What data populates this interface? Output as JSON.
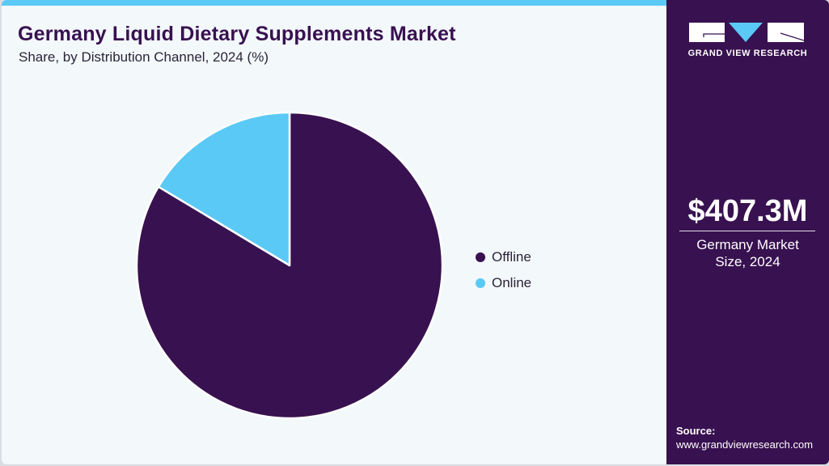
{
  "header": {
    "title": "Germany Liquid Dietary Supplements Market",
    "subtitle": "Share, by Distribution Channel, 2024 (%)"
  },
  "colors": {
    "offline": "#381150",
    "online": "#5bc9f5",
    "accent_bar": "#5bc9f5",
    "panel_bg": "#381150",
    "chart_bg": "#f3f8fb"
  },
  "legend": {
    "items": [
      {
        "label": "Offline",
        "color": "#381150"
      },
      {
        "label": "Online",
        "color": "#5bc9f5"
      }
    ]
  },
  "side_panel": {
    "logo_text": "GRAND VIEW RESEARCH",
    "market_value": "$407.3M",
    "market_label": "Germany Market Size, 2024",
    "source_label": "Source:",
    "source_url": "www.grandviewresearch.com"
  },
  "chart_data": {
    "type": "pie",
    "title": "Germany Liquid Dietary Supplements Market",
    "subtitle": "Share, by Distribution Channel, 2024 (%)",
    "categories": [
      "Offline",
      "Online"
    ],
    "values": [
      83.6,
      16.4
    ],
    "legend_position": "right",
    "start_angle": "12 o'clock",
    "direction": "clockwise"
  }
}
